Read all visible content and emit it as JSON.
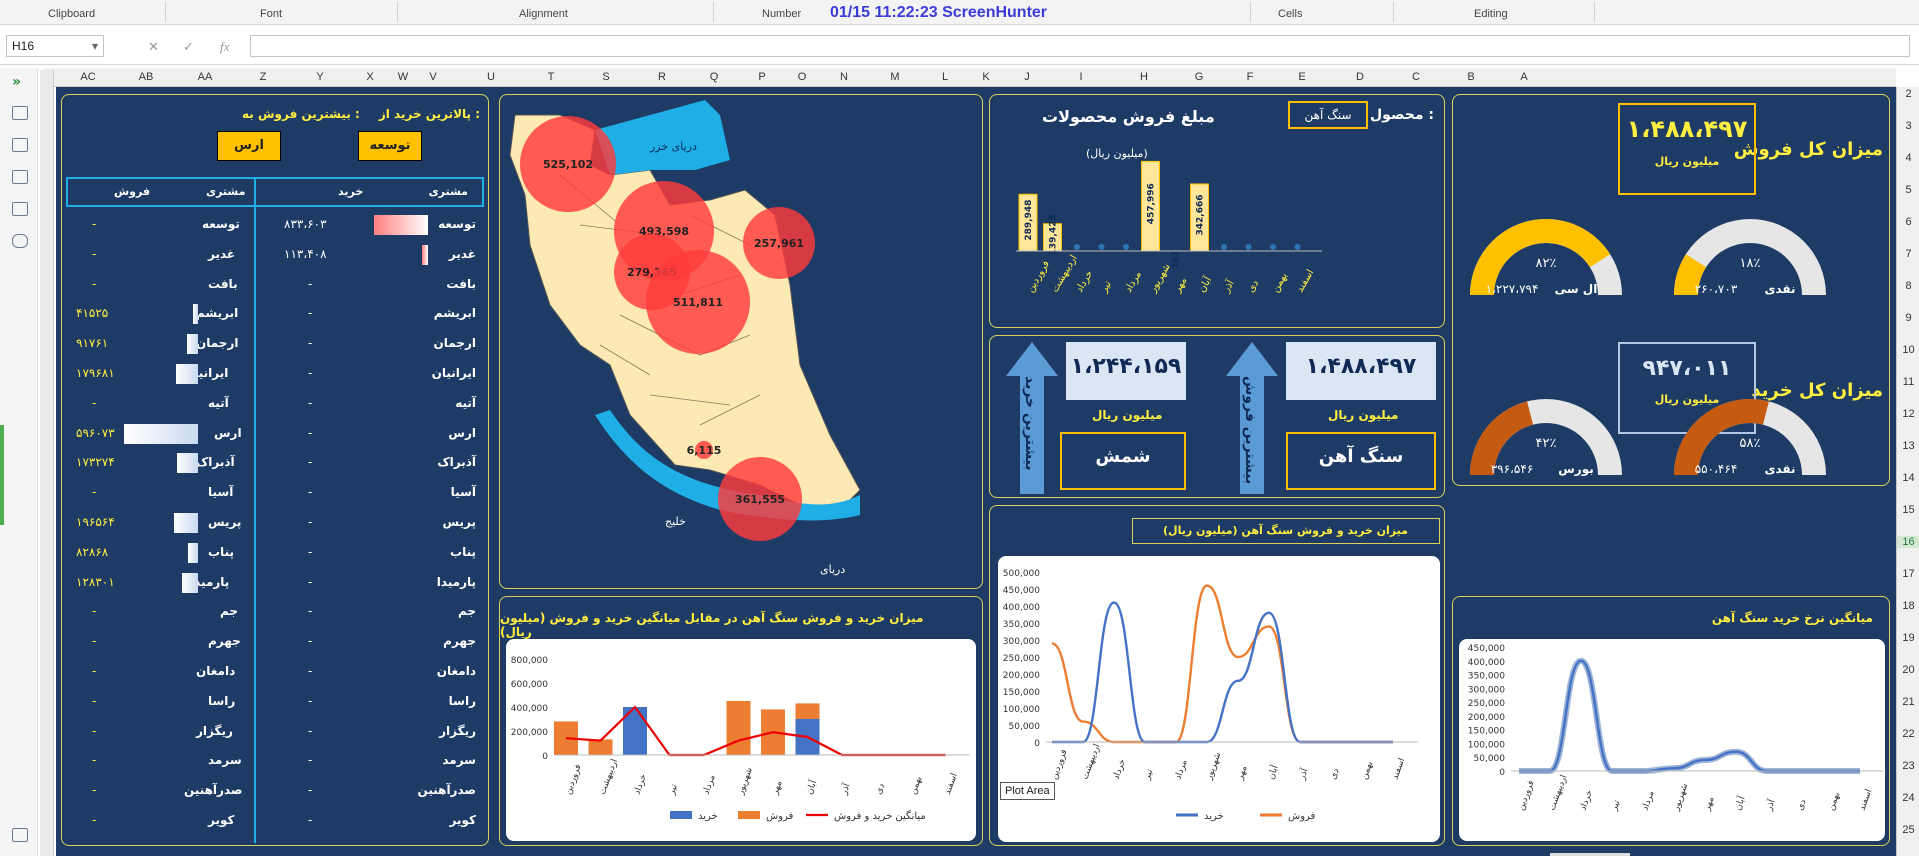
{
  "ribbon": {
    "groups": [
      "Clipboard",
      "Font",
      "Alignment",
      "Number",
      "Cells",
      "Editing"
    ],
    "capture": "01/15  11:22:23  ScreenHunter"
  },
  "formula_bar": {
    "cell": "H16",
    "value": ""
  },
  "columns": [
    "AC",
    "AB",
    "AA",
    "Z",
    "Y",
    "X",
    "W",
    "V",
    "U",
    "T",
    "S",
    "R",
    "Q",
    "P",
    "O",
    "N",
    "M",
    "L",
    "K",
    "J",
    "I",
    "H",
    "G",
    "F",
    "E",
    "D",
    "C",
    "B",
    "A"
  ],
  "rows": [
    "2",
    "3",
    "4",
    "5",
    "6",
    "7",
    "8",
    "9",
    "10",
    "11",
    "12",
    "13",
    "14",
    "15",
    "16",
    "17",
    "18",
    "19",
    "20",
    "21",
    "22",
    "23",
    "24",
    "25"
  ],
  "kpi": {
    "total_sales_label": "میزان کل فروش",
    "total_sales_value": "۱،۴۸۸،۴۹۷",
    "total_sales_unit": "میلیون ریال",
    "total_buy_label": "میزان کل خرید",
    "total_buy_value": "۹۴۷،۰۱۱",
    "total_buy_unit": "میلیون ریال",
    "gauges": [
      {
        "pct": "۱۸٪",
        "label": "نقدی",
        "value": "۲۶۰،۷۰۳",
        "fraction": 0.18,
        "color": "#ffc000"
      },
      {
        "pct": "۸۲٪",
        "label": "ال سی",
        "value": "۱،۲۲۷،۷۹۴",
        "fraction": 0.82,
        "color": "#ffc000"
      },
      {
        "pct": "۵۸٪",
        "label": "نقدی",
        "value": "۵۵۰،۴۶۴",
        "fraction": 0.58,
        "color": "#c55a11"
      },
      {
        "pct": "۴۲٪",
        "label": "بورس",
        "value": "۳۹۶،۵۴۶",
        "fraction": 0.42,
        "color": "#c55a11"
      }
    ]
  },
  "products": {
    "product_label": "محصول :",
    "product_value": "سنگ آهن",
    "title": "مبلغ فروش محصولات",
    "subtitle": "(میلیون ریال)",
    "months": [
      "فروردین",
      "اردیبهشت",
      "خرداد",
      "تیر",
      "مرداد",
      "شهریور",
      "مهر",
      "آبان",
      "آذر",
      "دی",
      "بهمن",
      "اسفند"
    ],
    "values": [
      289948,
      139425,
      0,
      0,
      0,
      457996,
      261,
      342666,
      0,
      0,
      0,
      0
    ],
    "labels": [
      "289,948",
      "139,425",
      "0",
      "0",
      "0",
      "457,996",
      "261",
      "342,666",
      "0",
      "0",
      "0",
      "0"
    ]
  },
  "best": {
    "sale_value": "۱،۴۸۸،۴۹۷",
    "sale_unit": "میلیون ریال",
    "sale_item": "سنگ آهن",
    "sale_arrow": "بیشترین فروش",
    "buy_value": "۱،۲۴۴،۱۵۹",
    "buy_unit": "میلیون ریال",
    "buy_item": "شمش",
    "buy_arrow": "بیشترین خرید"
  },
  "map": {
    "sea_north": "دریای خزر",
    "gulf": "خلیج",
    "sea_south": "دریای",
    "bubbles": [
      {
        "label": "525,102"
      },
      {
        "label": "493,598"
      },
      {
        "label": "257,961"
      },
      {
        "label": "279,365"
      },
      {
        "label": "511,811"
      },
      {
        "label": "6,115"
      },
      {
        "label": "361,555"
      }
    ]
  },
  "table": {
    "header_buy_from": "پالاترین خرید از :",
    "header_sale_to": "بیشترین فروش به :",
    "top_buyer": "توسعه",
    "top_seller": "ارس",
    "col_customer1": "مشتری",
    "col_buy": "خرید",
    "col_customer2": "مشتری",
    "col_sale": "فروش",
    "rows": [
      {
        "c1": "توسعه",
        "buy": "۸۳۳،۶۰۳",
        "bbar": 0.9,
        "c2": "توسعه",
        "sale": "-",
        "sbar": 0
      },
      {
        "c1": "غدیر",
        "buy": "۱۱۳،۴۰۸",
        "bbar": 0.1,
        "c2": "غدیر",
        "sale": "-",
        "sbar": 0
      },
      {
        "c1": "بافت",
        "buy": "-",
        "bbar": 0,
        "c2": "بافت",
        "sale": "-",
        "sbar": 0
      },
      {
        "c1": "ابریشم",
        "buy": "-",
        "bbar": 0,
        "c2": "ابریشم",
        "sale": "۴۱۵۲۵",
        "sbar": 0.07
      },
      {
        "c1": "ارجمان",
        "buy": "-",
        "bbar": 0,
        "c2": "ارجمان",
        "sale": "۹۱۷۶۱",
        "sbar": 0.15
      },
      {
        "c1": "ایرانیان",
        "buy": "-",
        "bbar": 0,
        "c2": "ایرانیان",
        "sale": "۱۷۹۶۸۱",
        "sbar": 0.3
      },
      {
        "c1": "آتیه",
        "buy": "-",
        "bbar": 0,
        "c2": "آتیه",
        "sale": "-",
        "sbar": 0
      },
      {
        "c1": "ارس",
        "buy": "-",
        "bbar": 0,
        "c2": "ارس",
        "sale": "۵۹۶۰۷۳",
        "sbar": 1
      },
      {
        "c1": "آذبراک",
        "buy": "-",
        "bbar": 0,
        "c2": "آذبراک",
        "sale": "۱۷۳۲۷۴",
        "sbar": 0.29
      },
      {
        "c1": "آسیا",
        "buy": "-",
        "bbar": 0,
        "c2": "آسیا",
        "sale": "-",
        "sbar": 0
      },
      {
        "c1": "پریس",
        "buy": "-",
        "bbar": 0,
        "c2": "پریس",
        "sale": "۱۹۶۵۶۴",
        "sbar": 0.33
      },
      {
        "c1": "پناب",
        "buy": "-",
        "bbar": 0,
        "c2": "پناب",
        "sale": "۸۲۸۶۸",
        "sbar": 0.14
      },
      {
        "c1": "پارمیدا",
        "buy": "-",
        "bbar": 0,
        "c2": "پارمیدا",
        "sale": "۱۲۸۳۰۱",
        "sbar": 0.22
      },
      {
        "c1": "جم",
        "buy": "-",
        "bbar": 0,
        "c2": "جم",
        "sale": "-",
        "sbar": 0
      },
      {
        "c1": "جهرم",
        "buy": "-",
        "bbar": 0,
        "c2": "جهرم",
        "sale": "-",
        "sbar": 0
      },
      {
        "c1": "دامغان",
        "buy": "-",
        "bbar": 0,
        "c2": "دامغان",
        "sale": "-",
        "sbar": 0
      },
      {
        "c1": "راسا",
        "buy": "-",
        "bbar": 0,
        "c2": "راسا",
        "sale": "-",
        "sbar": 0
      },
      {
        "c1": "ریگزار",
        "buy": "-",
        "bbar": 0,
        "c2": "ریگزار",
        "sale": "-",
        "sbar": 0
      },
      {
        "c1": "سرمد",
        "buy": "-",
        "bbar": 0,
        "c2": "سرمد",
        "sale": "-",
        "sbar": 0
      },
      {
        "c1": "صدرآهنین",
        "buy": "-",
        "bbar": 0,
        "c2": "صدرآهنین",
        "sale": "-",
        "sbar": 0
      },
      {
        "c1": "کویر",
        "buy": "-",
        "bbar": 0,
        "c2": "کویر",
        "sale": "-",
        "sbar": 0
      }
    ]
  },
  "charts": {
    "combo_title": "میزان خرید و فروش سنگ آهن در مقابل میانگین خرید و فروش (میلیون ریال)",
    "combo_yticks": [
      "800,000",
      "600,000",
      "400,000",
      "200,000",
      "0"
    ],
    "combo_legend": [
      "خرید",
      "فروش",
      "میانگین خرید و فروش"
    ],
    "combo_buy": [
      0,
      0,
      400000,
      0,
      0,
      0,
      0,
      300000,
      0,
      0,
      0,
      0
    ],
    "combo_sale": [
      280000,
      130000,
      0,
      0,
      0,
      450000,
      380000,
      430000,
      0,
      0,
      0,
      0
    ],
    "combo_avg": [
      140000,
      120000,
      400000,
      0,
      0,
      120000,
      190000,
      150000,
      0,
      0,
      0,
      0
    ],
    "line_title": "میزان خرید و فروش سنگ آهن (میلیون ریال)",
    "line_yticks": [
      "500,000",
      "450,000",
      "400,000",
      "350,000",
      "300,000",
      "250,000",
      "200,000",
      "150,000",
      "100,000",
      "50,000",
      "0"
    ],
    "line_legend": [
      "خرید",
      "فروش"
    ],
    "line_buy": [
      0,
      0,
      410000,
      0,
      0,
      0,
      180000,
      380000,
      0,
      0,
      0,
      0
    ],
    "line_sale": [
      290000,
      60000,
      0,
      0,
      0,
      460000,
      250000,
      340000,
      0,
      0,
      0,
      0
    ],
    "tooltip": "Plot Area",
    "avg_title": "میانگین نرخ خرید سنگ آهن",
    "avg_yticks": [
      "450,000",
      "400,000",
      "350,000",
      "300,000",
      "250,000",
      "200,000",
      "150,000",
      "100,000",
      "50,000",
      "0"
    ],
    "avg_values": [
      0,
      0,
      400000,
      0,
      0,
      10000,
      40000,
      70000,
      0,
      0,
      0,
      0
    ]
  },
  "colors": {
    "dash_bg": "#1e3b66",
    "accent_yellow": "#ffef40",
    "bubble": "#ff4c4c",
    "buy": "#4472c4",
    "sale": "#ed7d31"
  }
}
